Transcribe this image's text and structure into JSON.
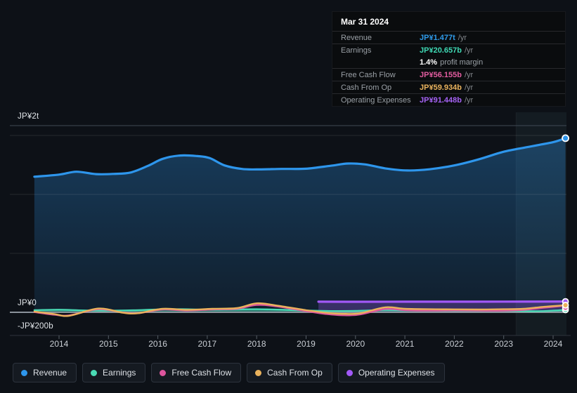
{
  "tooltip": {
    "date": "Mar 31 2024",
    "rows": [
      {
        "label": "Revenue",
        "value": "JP¥1.477t",
        "suffix": "/yr",
        "color": "#2f9bea"
      },
      {
        "label": "Earnings",
        "value": "JP¥20.657b",
        "suffix": "/yr",
        "color": "#3fd9b4",
        "submeta": {
          "strong": "1.4%",
          "rest": "profit margin"
        }
      },
      {
        "label": "Free Cash Flow",
        "value": "JP¥56.155b",
        "suffix": "/yr",
        "color": "#e25c9f"
      },
      {
        "label": "Cash From Op",
        "value": "JP¥59.934b",
        "suffix": "/yr",
        "color": "#ebb45e"
      },
      {
        "label": "Operating Expenses",
        "value": "JP¥91.448b",
        "suffix": "/yr",
        "color": "#a663f6"
      }
    ]
  },
  "y_axis": {
    "labels": [
      {
        "text": "JP¥2t",
        "value_b": 2000
      },
      {
        "text": "JP¥0",
        "value_b": 0
      },
      {
        "text": "-JP¥200b",
        "value_b": -200
      }
    ]
  },
  "x_axis": {
    "years": [
      "2014",
      "2015",
      "2016",
      "2017",
      "2018",
      "2019",
      "2020",
      "2021",
      "2022",
      "2023",
      "2024"
    ]
  },
  "legend": {
    "items": [
      {
        "label": "Revenue",
        "color": "#2e96ec"
      },
      {
        "label": "Earnings",
        "color": "#4adbb5"
      },
      {
        "label": "Free Cash Flow",
        "color": "#dd559d"
      },
      {
        "label": "Cash From Op",
        "color": "#eab25c"
      },
      {
        "label": "Operating Expenses",
        "color": "#a259f7"
      }
    ]
  },
  "chart_data": {
    "type": "area",
    "x_unit": "calendar year (decimal)",
    "y_unit": "JP¥ billions",
    "ylim_b": [
      -200,
      2000
    ],
    "gridline_values_b": [
      500,
      1000,
      1500
    ],
    "zero_line_b": 0,
    "highlight_period": {
      "from": 2023.25,
      "to": 2024.3
    },
    "grid": true,
    "legend_position": "bottom",
    "series": [
      {
        "name": "Revenue",
        "color": "#2e96ec",
        "fill": "gradient",
        "width": 3.2,
        "end_dot": true,
        "points": [
          [
            2013.5,
            1150
          ],
          [
            2014,
            1168
          ],
          [
            2014.35,
            1192
          ],
          [
            2014.75,
            1172
          ],
          [
            2015.1,
            1174
          ],
          [
            2015.45,
            1186
          ],
          [
            2015.8,
            1242
          ],
          [
            2016.1,
            1302
          ],
          [
            2016.45,
            1330
          ],
          [
            2016.8,
            1325
          ],
          [
            2017.05,
            1308
          ],
          [
            2017.35,
            1246
          ],
          [
            2017.7,
            1216
          ],
          [
            2018,
            1212
          ],
          [
            2018.5,
            1216
          ],
          [
            2019,
            1218
          ],
          [
            2019.5,
            1243
          ],
          [
            2019.85,
            1262
          ],
          [
            2020.2,
            1254
          ],
          [
            2020.6,
            1221
          ],
          [
            2021.05,
            1203
          ],
          [
            2021.5,
            1213
          ],
          [
            2022,
            1246
          ],
          [
            2022.5,
            1298
          ],
          [
            2023,
            1362
          ],
          [
            2023.5,
            1403
          ],
          [
            2024,
            1443
          ],
          [
            2024.25,
            1477
          ]
        ]
      },
      {
        "name": "Operating Expenses",
        "color": "#a259f7",
        "fill": "rgba(162,89,247,0.28)",
        "width": 3.2,
        "end_dot": true,
        "points": [
          [
            2019.25,
            90
          ],
          [
            2020,
            89.5
          ],
          [
            2021,
            90
          ],
          [
            2022,
            90
          ],
          [
            2023,
            90.5
          ],
          [
            2024.25,
            91.448
          ]
        ]
      },
      {
        "name": "Earnings",
        "color": "#4adbb5",
        "fill": "rgba(77,219,181,0.5)",
        "width": 2.4,
        "end_dot": true,
        "points": [
          [
            2013.5,
            18
          ],
          [
            2014,
            22
          ],
          [
            2014.5,
            16
          ],
          [
            2015,
            14
          ],
          [
            2015.5,
            17
          ],
          [
            2016,
            24
          ],
          [
            2016.5,
            26
          ],
          [
            2017,
            22
          ],
          [
            2017.5,
            24
          ],
          [
            2018,
            26
          ],
          [
            2018.5,
            22
          ],
          [
            2019,
            15
          ],
          [
            2019.5,
            11
          ],
          [
            2020,
            12
          ],
          [
            2020.6,
            20
          ],
          [
            2021,
            16
          ],
          [
            2021.5,
            14
          ],
          [
            2022,
            13
          ],
          [
            2022.5,
            13
          ],
          [
            2023,
            13
          ],
          [
            2023.6,
            9
          ],
          [
            2024,
            14
          ],
          [
            2024.25,
            20.657
          ]
        ]
      },
      {
        "name": "Free Cash Flow",
        "color": "#dd559d",
        "fill": "none",
        "width": 2.4,
        "end_dot": true,
        "dot_nudge": 3,
        "points": [
          [
            2013.5,
            2
          ],
          [
            2013.9,
            -20
          ],
          [
            2014.2,
            -26
          ],
          [
            2014.8,
            26
          ],
          [
            2015.3,
            -2
          ],
          [
            2015.6,
            -8
          ],
          [
            2016.1,
            24
          ],
          [
            2016.6,
            14
          ],
          [
            2017.1,
            24
          ],
          [
            2017.6,
            30
          ],
          [
            2018,
            62
          ],
          [
            2018.4,
            50
          ],
          [
            2019,
            10
          ],
          [
            2019.4,
            -14
          ],
          [
            2019.75,
            -25
          ],
          [
            2020.1,
            -18
          ],
          [
            2020.6,
            28
          ],
          [
            2021,
            18
          ],
          [
            2021.5,
            14
          ],
          [
            2022,
            16
          ],
          [
            2022.5,
            14
          ],
          [
            2023,
            14
          ],
          [
            2023.4,
            20
          ],
          [
            2023.8,
            38
          ],
          [
            2024.25,
            56.155
          ]
        ]
      },
      {
        "name": "Cash From Op",
        "color": "#eab25c",
        "fill": "none",
        "width": 2.4,
        "end_dot": true,
        "points": [
          [
            2013.5,
            6
          ],
          [
            2013.9,
            -14
          ],
          [
            2014.2,
            -30
          ],
          [
            2014.8,
            32
          ],
          [
            2015.3,
            -4
          ],
          [
            2015.6,
            -8
          ],
          [
            2016.1,
            30
          ],
          [
            2016.6,
            20
          ],
          [
            2017.1,
            30
          ],
          [
            2017.6,
            36
          ],
          [
            2018,
            76
          ],
          [
            2018.4,
            58
          ],
          [
            2019,
            18
          ],
          [
            2019.5,
            -8
          ],
          [
            2019.8,
            -13
          ],
          [
            2020.1,
            -8
          ],
          [
            2020.6,
            42
          ],
          [
            2021,
            30
          ],
          [
            2021.5,
            26
          ],
          [
            2022,
            25
          ],
          [
            2022.5,
            24
          ],
          [
            2023,
            26
          ],
          [
            2023.4,
            30
          ],
          [
            2023.8,
            46
          ],
          [
            2024.25,
            59.934
          ]
        ]
      }
    ]
  }
}
